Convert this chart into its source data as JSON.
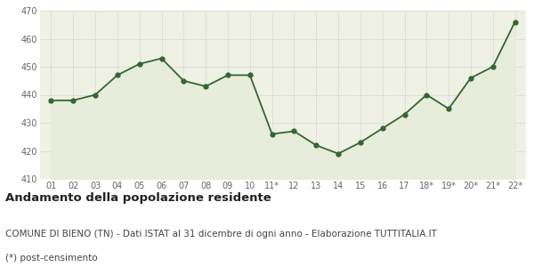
{
  "x_labels": [
    "01",
    "02",
    "03",
    "04",
    "05",
    "06",
    "07",
    "08",
    "09",
    "10",
    "11*",
    "12",
    "13",
    "14",
    "15",
    "16",
    "17",
    "18*",
    "19*",
    "20*",
    "21*",
    "22*"
  ],
  "values": [
    438,
    438,
    440,
    447,
    451,
    453,
    445,
    443,
    447,
    447,
    426,
    427,
    422,
    419,
    423,
    428,
    433,
    440,
    435,
    446,
    450,
    466
  ],
  "line_color": "#336633",
  "fill_color": "#e8ecda",
  "marker": "o",
  "marker_size": 3.5,
  "ylim": [
    410,
    470
  ],
  "yticks": [
    410,
    420,
    430,
    440,
    450,
    460,
    470
  ],
  "title": "Andamento della popolazione residente",
  "subtitle": "COMUNE DI BIENO (TN) - Dati ISTAT al 31 dicembre di ogni anno - Elaborazione TUTTITALIA.IT",
  "footnote": "(*) post-censimento",
  "title_fontsize": 9.5,
  "subtitle_fontsize": 7.5,
  "footnote_fontsize": 7.5,
  "bg_color": "#ffffff",
  "plot_bg_color": "#eef1e3",
  "grid_color": "#d8d8d8",
  "tick_color": "#666666"
}
